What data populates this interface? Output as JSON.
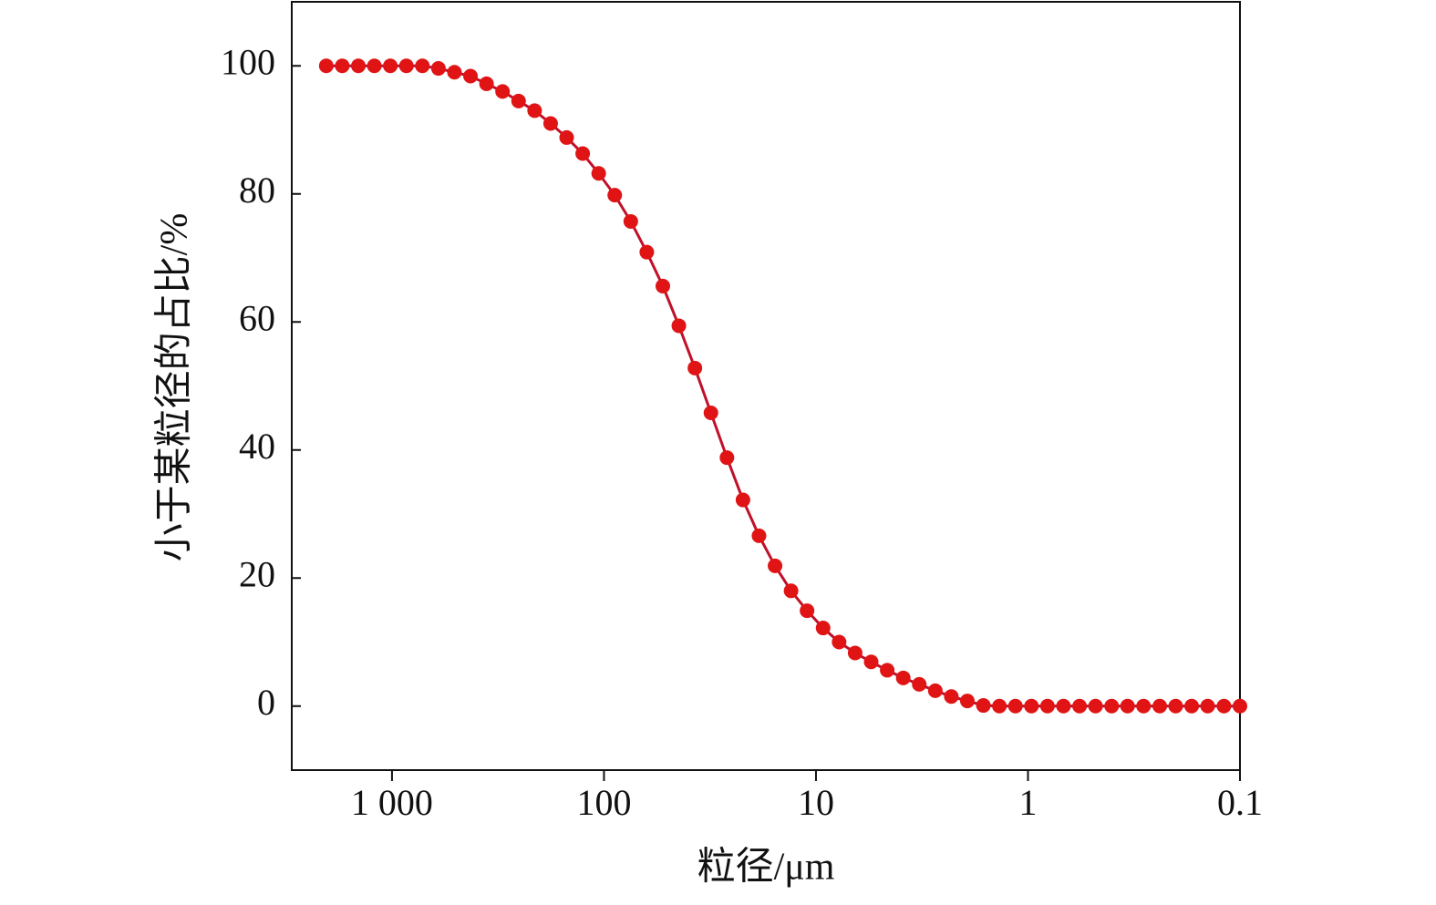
{
  "chart_data": {
    "type": "line",
    "xlabel": "粒径/μm",
    "ylabel": "小于某粒径的占比/%",
    "xscale": "log",
    "xlim": [
      2970,
      0.1
    ],
    "ylim": [
      -10,
      110
    ],
    "xticks": [
      {
        "value": 1000,
        "label": "1 000"
      },
      100,
      10,
      1,
      0.1
    ],
    "yticks": [
      0,
      20,
      40,
      60,
      80,
      100
    ],
    "x": [
      2042,
      1716,
      1441,
      1211,
      1018,
      855,
      718.6,
      603.8,
      507.3,
      426.2,
      358.1,
      300.9,
      252.8,
      212.4,
      178.5,
      150.0,
      126.0,
      105.9,
      88.96,
      74.74,
      62.81,
      52.77,
      44.34,
      37.25,
      31.3,
      26.3,
      22.1,
      18.57,
      15.6,
      13.11,
      11.02,
      9.256,
      7.777,
      6.535,
      5.49,
      4.613,
      3.876,
      3.257,
      2.736,
      2.299,
      1.932,
      1.623,
      1.364,
      1.146,
      0.963,
      0.809,
      0.68,
      0.571,
      0.48,
      0.403,
      0.339,
      0.285,
      0.239,
      0.201,
      0.169,
      0.142,
      0.119,
      0.1
    ],
    "series": [
      {
        "color": "#e01414",
        "values": [
          100,
          100,
          100,
          100,
          100,
          100,
          100,
          99.6,
          99,
          98.4,
          97.2,
          96,
          94.5,
          93,
          91,
          88.8,
          86.3,
          83.2,
          79.8,
          75.7,
          70.9,
          65.6,
          59.4,
          52.8,
          45.8,
          38.8,
          32.2,
          26.6,
          21.9,
          18,
          14.9,
          12.2,
          10,
          8.3,
          6.9,
          5.6,
          4.4,
          3.4,
          2.4,
          1.5,
          0.8,
          0.1,
          0,
          0,
          0,
          0,
          0,
          0,
          0,
          0,
          0,
          0,
          0,
          0,
          0,
          0,
          0,
          0
        ]
      }
    ]
  }
}
